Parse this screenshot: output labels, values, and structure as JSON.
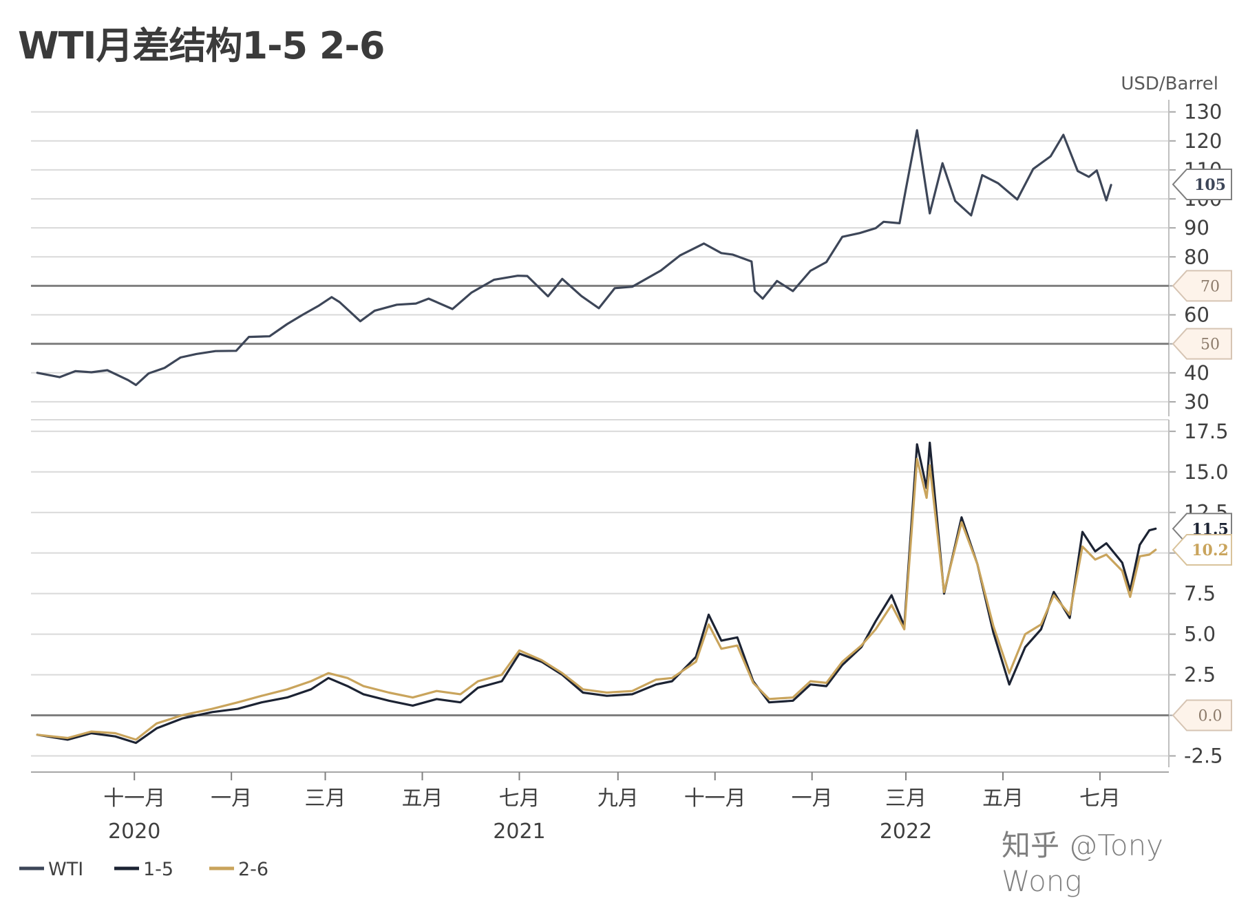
{
  "title": "WTI月差结构1-5 2-6",
  "watermark": "知乎 @Tony Wong",
  "colors": {
    "wti": "#3d4658",
    "spread15": "#1c2333",
    "spread26": "#c9a45c",
    "grid": "#d9d9d9",
    "refline": "#7f7f7f",
    "callout_fill": "#fdf3ea"
  },
  "chart_data": [
    {
      "type": "line",
      "panel": "top",
      "unit": "USD/Barrel",
      "ylim": [
        25,
        133
      ],
      "yticks": [
        30,
        40,
        50,
        60,
        70,
        80,
        90,
        100,
        110,
        120,
        130
      ],
      "grid": true,
      "reference_lines": [
        70,
        50
      ],
      "callouts": [
        {
          "label": "105",
          "value": 105,
          "style": "value"
        },
        {
          "label": "70",
          "value": 70,
          "style": "ref"
        },
        {
          "label": "50",
          "value": 50,
          "style": "ref"
        }
      ],
      "series": [
        {
          "name": "WTI",
          "color": "#3d4658",
          "points": [
            [
              "2020-09-01",
              40.0
            ],
            [
              "2020-09-15",
              38.5
            ],
            [
              "2020-09-25",
              40.6
            ],
            [
              "2020-10-05",
              40.2
            ],
            [
              "2020-10-15",
              40.9
            ],
            [
              "2020-10-28",
              37.5
            ],
            [
              "2020-11-02",
              35.8
            ],
            [
              "2020-11-10",
              39.8
            ],
            [
              "2020-11-20",
              41.7
            ],
            [
              "2020-11-30",
              45.3
            ],
            [
              "2020-12-10",
              46.5
            ],
            [
              "2020-12-22",
              47.5
            ],
            [
              "2021-01-04",
              47.6
            ],
            [
              "2021-01-12",
              52.4
            ],
            [
              "2021-01-25",
              52.6
            ],
            [
              "2021-02-05",
              56.8
            ],
            [
              "2021-02-15",
              60.1
            ],
            [
              "2021-02-25",
              63.2
            ],
            [
              "2021-03-05",
              66.1
            ],
            [
              "2021-03-10",
              64.4
            ],
            [
              "2021-03-23",
              57.8
            ],
            [
              "2021-04-01",
              61.4
            ],
            [
              "2021-04-15",
              63.5
            ],
            [
              "2021-04-27",
              63.9
            ],
            [
              "2021-05-05",
              65.6
            ],
            [
              "2021-05-20",
              62.0
            ],
            [
              "2021-06-01",
              67.7
            ],
            [
              "2021-06-15",
              72.1
            ],
            [
              "2021-06-30",
              73.5
            ],
            [
              "2021-07-06",
              73.4
            ],
            [
              "2021-07-19",
              66.4
            ],
            [
              "2021-07-28",
              72.4
            ],
            [
              "2021-08-09",
              66.5
            ],
            [
              "2021-08-20",
              62.3
            ],
            [
              "2021-08-30",
              69.2
            ],
            [
              "2021-09-10",
              69.7
            ],
            [
              "2021-09-28",
              75.3
            ],
            [
              "2021-10-10",
              80.5
            ],
            [
              "2021-10-25",
              84.6
            ],
            [
              "2021-11-05",
              81.3
            ],
            [
              "2021-11-12",
              80.8
            ],
            [
              "2021-11-24",
              78.4
            ],
            [
              "2021-11-26",
              68.2
            ],
            [
              "2021-12-01",
              65.6
            ],
            [
              "2021-12-10",
              71.7
            ],
            [
              "2021-12-20",
              68.2
            ],
            [
              "2021-12-31",
              75.2
            ],
            [
              "2022-01-10",
              78.2
            ],
            [
              "2022-01-20",
              86.9
            ],
            [
              "2022-01-31",
              88.2
            ],
            [
              "2022-02-10",
              89.9
            ],
            [
              "2022-02-15",
              92.1
            ],
            [
              "2022-02-25",
              91.6
            ],
            [
              "2022-03-01",
              103.4
            ],
            [
              "2022-03-08",
              123.7
            ],
            [
              "2022-03-16",
              95.0
            ],
            [
              "2022-03-24",
              112.3
            ],
            [
              "2022-04-01",
              99.3
            ],
            [
              "2022-04-11",
              94.3
            ],
            [
              "2022-04-18",
              108.2
            ],
            [
              "2022-04-28",
              105.4
            ],
            [
              "2022-05-10",
              99.8
            ],
            [
              "2022-05-20",
              110.3
            ],
            [
              "2022-05-31",
              114.7
            ],
            [
              "2022-06-08",
              122.1
            ],
            [
              "2022-06-17",
              109.6
            ],
            [
              "2022-06-24",
              107.6
            ],
            [
              "2022-06-29",
              109.8
            ],
            [
              "2022-07-05",
              99.5
            ],
            [
              "2022-07-08",
              104.8
            ]
          ]
        }
      ]
    },
    {
      "type": "line",
      "panel": "bottom",
      "ylim": [
        -3.2,
        18
      ],
      "yticks": [
        -2.5,
        0.0,
        2.5,
        5.0,
        7.5,
        10.0,
        12.5,
        15.0,
        17.5
      ],
      "grid": true,
      "reference_lines": [
        0.0
      ],
      "callouts": [
        {
          "label": "11.5",
          "value": 11.5,
          "style": "value15"
        },
        {
          "label": "10.2",
          "value": 10.2,
          "style": "value26"
        },
        {
          "label": "0.0",
          "value": 0.0,
          "style": "ref"
        }
      ],
      "series": [
        {
          "name": "1-5",
          "color": "#1c2333",
          "points": [
            [
              "2020-09-01",
              -1.2
            ],
            [
              "2020-09-20",
              -1.5
            ],
            [
              "2020-10-05",
              -1.1
            ],
            [
              "2020-10-20",
              -1.3
            ],
            [
              "2020-11-02",
              -1.7
            ],
            [
              "2020-11-15",
              -0.8
            ],
            [
              "2020-12-01",
              -0.2
            ],
            [
              "2020-12-20",
              0.2
            ],
            [
              "2021-01-05",
              0.4
            ],
            [
              "2021-01-20",
              0.8
            ],
            [
              "2021-02-05",
              1.1
            ],
            [
              "2021-02-20",
              1.6
            ],
            [
              "2021-03-03",
              2.3
            ],
            [
              "2021-03-15",
              1.8
            ],
            [
              "2021-03-25",
              1.3
            ],
            [
              "2021-04-10",
              0.9
            ],
            [
              "2021-04-25",
              0.6
            ],
            [
              "2021-05-10",
              1.0
            ],
            [
              "2021-05-25",
              0.8
            ],
            [
              "2021-06-05",
              1.7
            ],
            [
              "2021-06-20",
              2.1
            ],
            [
              "2021-07-01",
              3.8
            ],
            [
              "2021-07-15",
              3.3
            ],
            [
              "2021-07-28",
              2.5
            ],
            [
              "2021-08-10",
              1.4
            ],
            [
              "2021-08-25",
              1.2
            ],
            [
              "2021-09-10",
              1.3
            ],
            [
              "2021-09-25",
              1.9
            ],
            [
              "2021-10-05",
              2.1
            ],
            [
              "2021-10-20",
              3.6
            ],
            [
              "2021-10-28",
              6.2
            ],
            [
              "2021-11-05",
              4.6
            ],
            [
              "2021-11-15",
              4.8
            ],
            [
              "2021-11-25",
              2.1
            ],
            [
              "2021-12-05",
              0.8
            ],
            [
              "2021-12-20",
              0.9
            ],
            [
              "2021-12-31",
              1.9
            ],
            [
              "2022-01-10",
              1.8
            ],
            [
              "2022-01-20",
              3.1
            ],
            [
              "2022-02-01",
              4.2
            ],
            [
              "2022-02-10",
              5.8
            ],
            [
              "2022-02-20",
              7.4
            ],
            [
              "2022-02-28",
              5.5
            ],
            [
              "2022-03-08",
              16.7
            ],
            [
              "2022-03-14",
              14.0
            ],
            [
              "2022-03-16",
              16.8
            ],
            [
              "2022-03-25",
              7.5
            ],
            [
              "2022-04-05",
              12.2
            ],
            [
              "2022-04-15",
              9.3
            ],
            [
              "2022-04-25",
              5.1
            ],
            [
              "2022-05-05",
              1.9
            ],
            [
              "2022-05-15",
              4.2
            ],
            [
              "2022-05-25",
              5.3
            ],
            [
              "2022-06-02",
              7.6
            ],
            [
              "2022-06-12",
              6.0
            ],
            [
              "2022-06-20",
              11.3
            ],
            [
              "2022-06-28",
              10.1
            ],
            [
              "2022-07-05",
              10.6
            ],
            [
              "2022-07-15",
              9.4
            ],
            [
              "2022-07-20",
              7.7
            ],
            [
              "2022-07-26",
              10.5
            ],
            [
              "2022-08-01",
              11.4
            ],
            [
              "2022-08-05",
              11.5
            ]
          ]
        },
        {
          "name": "2-6",
          "color": "#c9a45c",
          "points": [
            [
              "2020-09-01",
              -1.2
            ],
            [
              "2020-09-20",
              -1.4
            ],
            [
              "2020-10-05",
              -1.0
            ],
            [
              "2020-10-20",
              -1.1
            ],
            [
              "2020-11-02",
              -1.5
            ],
            [
              "2020-11-15",
              -0.5
            ],
            [
              "2020-12-01",
              0.0
            ],
            [
              "2020-12-20",
              0.4
            ],
            [
              "2021-01-05",
              0.8
            ],
            [
              "2021-01-20",
              1.2
            ],
            [
              "2021-02-05",
              1.6
            ],
            [
              "2021-02-20",
              2.1
            ],
            [
              "2021-03-03",
              2.6
            ],
            [
              "2021-03-15",
              2.3
            ],
            [
              "2021-03-25",
              1.8
            ],
            [
              "2021-04-10",
              1.4
            ],
            [
              "2021-04-25",
              1.1
            ],
            [
              "2021-05-10",
              1.5
            ],
            [
              "2021-05-25",
              1.3
            ],
            [
              "2021-06-05",
              2.1
            ],
            [
              "2021-06-20",
              2.5
            ],
            [
              "2021-07-01",
              4.0
            ],
            [
              "2021-07-15",
              3.4
            ],
            [
              "2021-07-28",
              2.6
            ],
            [
              "2021-08-10",
              1.6
            ],
            [
              "2021-08-25",
              1.4
            ],
            [
              "2021-09-10",
              1.5
            ],
            [
              "2021-09-25",
              2.2
            ],
            [
              "2021-10-05",
              2.3
            ],
            [
              "2021-10-20",
              3.3
            ],
            [
              "2021-10-28",
              5.6
            ],
            [
              "2021-11-05",
              4.1
            ],
            [
              "2021-11-15",
              4.3
            ],
            [
              "2021-11-25",
              2.0
            ],
            [
              "2021-12-05",
              1.0
            ],
            [
              "2021-12-20",
              1.1
            ],
            [
              "2021-12-31",
              2.1
            ],
            [
              "2022-01-10",
              2.0
            ],
            [
              "2022-01-20",
              3.3
            ],
            [
              "2022-02-01",
              4.3
            ],
            [
              "2022-02-10",
              5.3
            ],
            [
              "2022-02-20",
              6.8
            ],
            [
              "2022-02-28",
              5.3
            ],
            [
              "2022-03-08",
              15.8
            ],
            [
              "2022-03-14",
              13.4
            ],
            [
              "2022-03-16",
              15.4
            ],
            [
              "2022-03-25",
              7.6
            ],
            [
              "2022-04-05",
              11.9
            ],
            [
              "2022-04-15",
              9.3
            ],
            [
              "2022-04-25",
              5.5
            ],
            [
              "2022-05-05",
              2.6
            ],
            [
              "2022-05-15",
              5.0
            ],
            [
              "2022-05-25",
              5.6
            ],
            [
              "2022-06-02",
              7.4
            ],
            [
              "2022-06-12",
              6.2
            ],
            [
              "2022-06-20",
              10.4
            ],
            [
              "2022-06-28",
              9.6
            ],
            [
              "2022-07-05",
              9.9
            ],
            [
              "2022-07-15",
              8.9
            ],
            [
              "2022-07-20",
              7.3
            ],
            [
              "2022-07-26",
              9.8
            ],
            [
              "2022-08-01",
              9.9
            ],
            [
              "2022-08-05",
              10.2
            ]
          ]
        }
      ]
    }
  ],
  "x_axis": {
    "range": [
      "2020-08-28",
      "2022-08-12"
    ],
    "ticks": [
      {
        "date": "2020-11-01",
        "label": "十一月"
      },
      {
        "date": "2021-01-01",
        "label": "一月"
      },
      {
        "date": "2021-03-01",
        "label": "三月"
      },
      {
        "date": "2021-05-01",
        "label": "五月"
      },
      {
        "date": "2021-07-01",
        "label": "七月"
      },
      {
        "date": "2021-09-01",
        "label": "九月"
      },
      {
        "date": "2021-11-01",
        "label": "十一月"
      },
      {
        "date": "2022-01-01",
        "label": "一月"
      },
      {
        "date": "2022-03-01",
        "label": "三月"
      },
      {
        "date": "2022-05-01",
        "label": "五月"
      },
      {
        "date": "2022-07-01",
        "label": "七月"
      }
    ],
    "years": [
      {
        "date": "2020-11-01",
        "label": "2020"
      },
      {
        "date": "2021-07-01",
        "label": "2021"
      },
      {
        "date": "2022-03-01",
        "label": "2022"
      }
    ]
  },
  "legend": [
    {
      "label": "WTI",
      "color": "#3d4658"
    },
    {
      "label": "1-5",
      "color": "#1c2333"
    },
    {
      "label": "2-6",
      "color": "#c9a45c"
    }
  ]
}
